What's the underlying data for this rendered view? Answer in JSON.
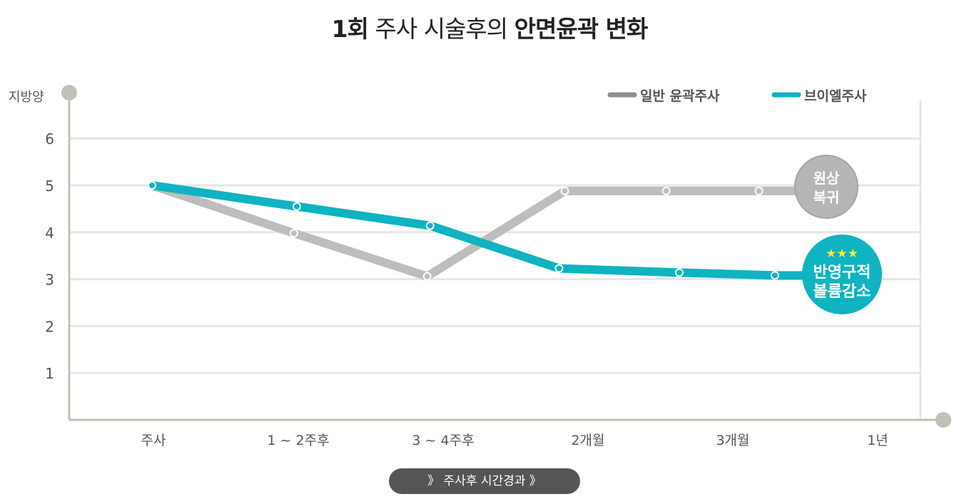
{
  "title": {
    "part1": "1회",
    "part2": "주사 시술후의",
    "part3": "안면윤곽 변화"
  },
  "button": {
    "label": "》 주사후 시간경과 》"
  },
  "chart_data": {
    "type": "line",
    "title": "1회 주사 시술후의 안면윤곽 변화",
    "ylabel": "지방양",
    "xlabel": "주사후 시간경과",
    "ylim": [
      0,
      6
    ],
    "yticks": [
      "1",
      "2",
      "3",
      "4",
      "5",
      "6"
    ],
    "categories": [
      "주사",
      "1 ~ 2주후",
      "3 ~ 4주후",
      "2개월",
      "3개월",
      "1년"
    ],
    "grid": true,
    "legend_position": "top-right",
    "series": [
      {
        "name": "일반 윤곽주사",
        "color": "#bdbdbd",
        "legend_color": "#8e8e8e",
        "x": [
          0,
          0.98,
          1.9,
          2.85,
          3.55,
          4.19
        ],
        "values": [
          5.0,
          3.98,
          3.06,
          4.88,
          4.88,
          4.88
        ],
        "end_x": 4.7,
        "annotation": {
          "lines": [
            "원상",
            "복귀"
          ],
          "color": "#b5b5b5"
        }
      },
      {
        "name": "브이엘주사",
        "color": "#0fb3c1",
        "legend_color": "#0fb3c1",
        "x": [
          0,
          1.0,
          1.92,
          2.81,
          3.64,
          4.3
        ],
        "values": [
          5.0,
          4.55,
          4.14,
          3.23,
          3.14,
          3.08
        ],
        "end_x": 4.75,
        "annotation": {
          "stars": "★★★",
          "lines": [
            "반영구적",
            "볼륨감소"
          ],
          "color": "#0fb3c1"
        }
      }
    ]
  }
}
